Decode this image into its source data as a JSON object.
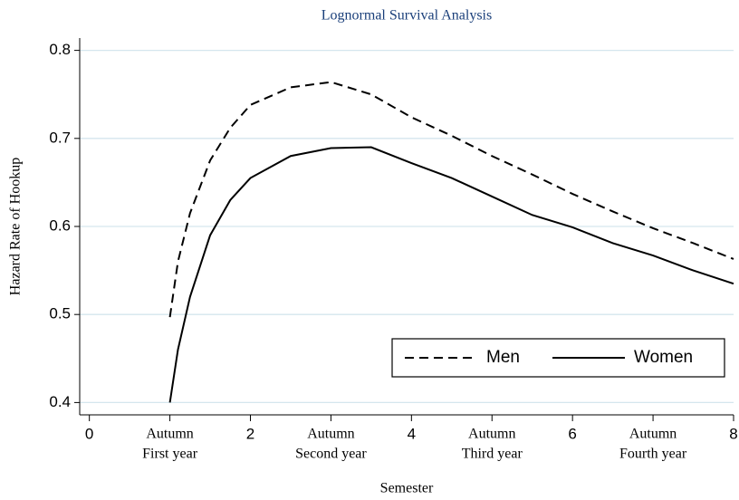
{
  "chart_data": {
    "type": "line",
    "title": "Lognormal Survival Analysis",
    "x_label": "Semester",
    "y_label": "Hazard Rate of Hookup",
    "x": [
      1.0,
      1.1,
      1.25,
      1.5,
      1.75,
      2.0,
      2.5,
      3.0,
      3.5,
      4.0,
      4.5,
      5.0,
      5.5,
      6.0,
      6.5,
      7.0,
      7.5,
      8.0
    ],
    "series": [
      {
        "name": "Men",
        "color": "#000000",
        "dashed": true,
        "values": [
          0.497,
          0.56,
          0.615,
          0.675,
          0.712,
          0.738,
          0.758,
          0.764,
          0.75,
          0.724,
          0.703,
          0.68,
          0.659,
          0.637,
          0.617,
          0.598,
          0.581,
          0.563
        ]
      },
      {
        "name": "Women",
        "color": "#000000",
        "dashed": false,
        "values": [
          0.4,
          0.46,
          0.52,
          0.59,
          0.63,
          0.655,
          0.68,
          0.689,
          0.69,
          0.672,
          0.655,
          0.634,
          0.613,
          0.599,
          0.581,
          0.567,
          0.55,
          0.535
        ]
      }
    ],
    "xlim": [
      -0.12,
      8
    ],
    "ylim": [
      0.386,
      0.814
    ],
    "xticks": [
      0,
      {
        "value": 1,
        "label": [
          "Autumn",
          "First year"
        ]
      },
      2,
      {
        "value": 3,
        "label": [
          "Autumn",
          "Second year"
        ]
      },
      4,
      {
        "value": 5,
        "label": [
          "Autumn",
          "Third year"
        ]
      },
      6,
      {
        "value": 7,
        "label": [
          "Autumn",
          "Fourth year"
        ]
      },
      8
    ],
    "yticks": [
      0.4,
      0.5,
      0.6,
      0.7,
      0.8
    ],
    "grid": true,
    "grid_color": "#d5e6ee",
    "title_color": "#1a3f7a"
  }
}
